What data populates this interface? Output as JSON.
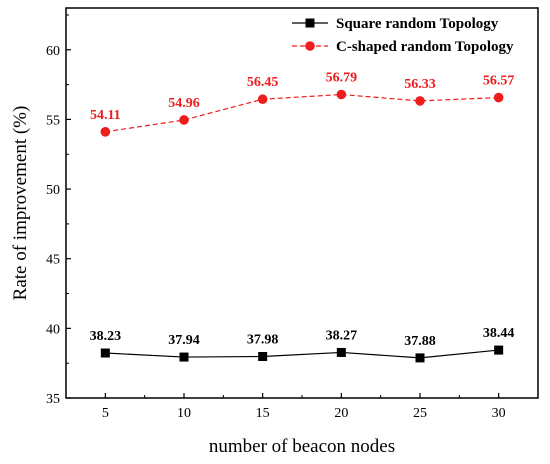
{
  "chart_data": {
    "type": "line",
    "x": [
      5,
      10,
      15,
      20,
      25,
      30
    ],
    "xlabel": "number of beacon nodes",
    "ylabel": "Rate of improvement (%)",
    "ylim": [
      35,
      63
    ],
    "yticks": [
      35,
      40,
      45,
      50,
      55,
      60
    ],
    "xticks": [
      5,
      10,
      15,
      20,
      25,
      30
    ],
    "grid": false,
    "legend_position": "top-right",
    "series": [
      {
        "name": "Square random Topology",
        "values": [
          38.23,
          37.94,
          37.98,
          38.27,
          37.88,
          38.44
        ],
        "labels": [
          "38.23",
          "37.94",
          "37.98",
          "38.27",
          "37.88",
          "38.44"
        ],
        "color": "#000000",
        "line_style": "solid",
        "marker": "square"
      },
      {
        "name": "C-shaped random Topology",
        "values": [
          54.11,
          54.96,
          56.45,
          56.79,
          56.33,
          56.57
        ],
        "labels": [
          "54.11",
          "54.96",
          "56.45",
          "56.79",
          "56.33",
          "56.57"
        ],
        "color": "#ee1c1c",
        "line_style": "dashed",
        "marker": "circle"
      }
    ]
  }
}
